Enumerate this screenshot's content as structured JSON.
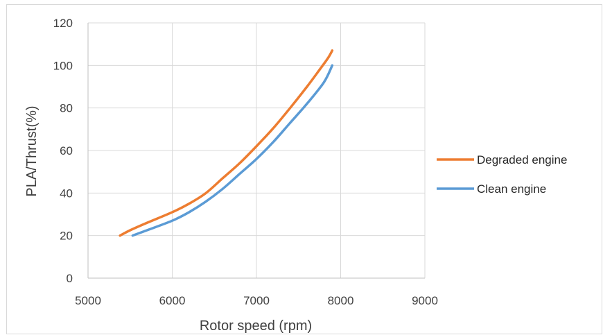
{
  "chart_data": {
    "type": "line",
    "title": "",
    "xlabel": "Rotor speed (rpm)",
    "ylabel": "PLA/Thrust(%)",
    "xlim": [
      5000,
      9000
    ],
    "ylim": [
      0,
      120
    ],
    "xticks": [
      5000,
      6000,
      7000,
      8000,
      9000
    ],
    "yticks": [
      0,
      20,
      40,
      60,
      80,
      100,
      120
    ],
    "grid": true,
    "legend_position": "right",
    "series": [
      {
        "name": "Degraded engine",
        "color": "#ED7D31",
        "x": [
          5380,
          5500,
          5700,
          6000,
          6200,
          6400,
          6600,
          6800,
          7000,
          7200,
          7400,
          7600,
          7750,
          7850,
          7900
        ],
        "y": [
          20,
          22.5,
          26,
          31,
          35,
          40,
          47,
          54,
          62,
          70.5,
          80,
          90,
          98,
          103.5,
          107
        ]
      },
      {
        "name": "Clean engine",
        "color": "#5B9BD5",
        "x": [
          5530,
          5700,
          6000,
          6200,
          6400,
          6600,
          6800,
          7000,
          7200,
          7400,
          7600,
          7800,
          7900
        ],
        "y": [
          20,
          22.5,
          27,
          31,
          36,
          42,
          49,
          56,
          64,
          73,
          82,
          92,
          100
        ]
      }
    ]
  }
}
